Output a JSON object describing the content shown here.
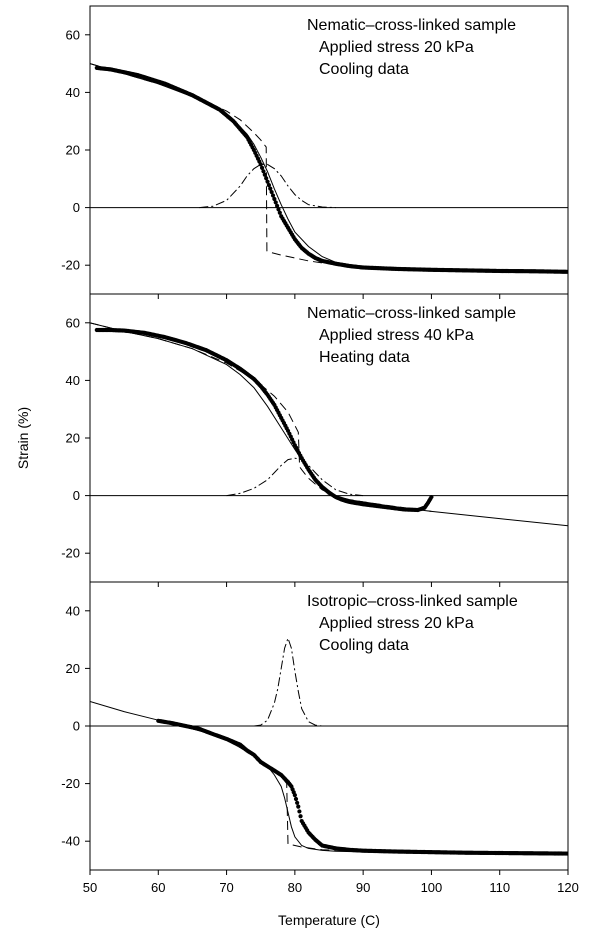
{
  "figure": {
    "xlabel": "Temperature (C)",
    "ylabel": "Strain (%)"
  },
  "chart_data": [
    {
      "type": "scatter",
      "panel": "top",
      "annotation": [
        "Nematic–cross-linked sample",
        "Applied stress 20 kPa",
        "Cooling data"
      ],
      "xlim": [
        50,
        120
      ],
      "ylim": [
        -30,
        70
      ],
      "x_ticks": [
        50,
        60,
        70,
        80,
        90,
        100,
        110,
        120
      ],
      "y_ticks": [
        -20,
        0,
        20,
        40,
        60
      ],
      "zero_line": true,
      "series": [
        {
          "style": "points",
          "x": [
            51,
            53,
            55,
            57,
            59,
            61,
            63,
            65,
            67,
            69,
            71,
            73,
            74,
            75,
            76,
            77,
            78,
            79,
            80,
            81,
            82,
            83,
            84,
            86,
            88,
            90,
            95,
            100,
            105,
            110,
            115,
            120
          ],
          "y": [
            48.5,
            48,
            47,
            46,
            44.5,
            43,
            41,
            39,
            36.5,
            34,
            30,
            24.5,
            20,
            15,
            9,
            3,
            -3,
            -7,
            -11,
            -14,
            -16,
            -17.5,
            -18.5,
            -19.5,
            -20.3,
            -20.8,
            -21.3,
            -21.6,
            -21.8,
            -22,
            -22.1,
            -22.3
          ]
        },
        {
          "style": "solid",
          "x": [
            50,
            55,
            60,
            65,
            68,
            70,
            72,
            73,
            74,
            75,
            76,
            77,
            78,
            79,
            80,
            82,
            84,
            86,
            90,
            100,
            110,
            120
          ],
          "y": [
            50,
            46.5,
            43,
            38.5,
            35,
            32,
            28,
            25.5,
            22,
            17.5,
            12.5,
            6.5,
            1,
            -4,
            -8.5,
            -13.5,
            -17,
            -19,
            -20.5,
            -21.5,
            -22,
            -22.3
          ]
        },
        {
          "style": "dashed",
          "x": [
            50,
            55,
            60,
            65,
            70,
            72,
            74,
            75,
            75.8,
            75.9,
            76.2,
            78,
            80,
            82,
            84,
            86,
            90,
            100,
            110,
            120
          ],
          "y": [
            50,
            46.5,
            43,
            39,
            33.5,
            30.5,
            26,
            23.5,
            21,
            -15,
            -15.4,
            -16.5,
            -17.5,
            -18.5,
            -19.2,
            -19.8,
            -20.6,
            -21.5,
            -22,
            -22.3
          ]
        },
        {
          "style": "dashdot",
          "x": [
            66,
            68,
            70,
            72,
            73,
            74,
            75,
            76,
            77,
            78,
            79,
            80,
            81,
            82,
            84,
            86
          ],
          "y": [
            0,
            0.5,
            2.5,
            7.5,
            11,
            13.5,
            15,
            15,
            13.5,
            11,
            7.5,
            4.5,
            2.5,
            1,
            0.2,
            0
          ]
        }
      ]
    },
    {
      "type": "scatter",
      "panel": "middle",
      "annotation": [
        "Nematic–cross-linked sample",
        "Applied stress 40 kPa",
        "Heating data"
      ],
      "xlim": [
        50,
        120
      ],
      "ylim": [
        -30,
        70
      ],
      "x_ticks": [
        50,
        60,
        70,
        80,
        90,
        100,
        110,
        120
      ],
      "y_ticks": [
        -20,
        0,
        20,
        40,
        60
      ],
      "zero_line": true,
      "series": [
        {
          "style": "points",
          "x": [
            51,
            53,
            55,
            58,
            61,
            64,
            67,
            70,
            72,
            74,
            75,
            76,
            77,
            78,
            79,
            80,
            81,
            82,
            83,
            84,
            85,
            86,
            87,
            88,
            90,
            92,
            94,
            96,
            98,
            99,
            99.5,
            100
          ],
          "y": [
            57.5,
            57.5,
            57.3,
            56.5,
            55,
            53,
            50.5,
            47,
            44,
            40.5,
            38,
            35,
            31.5,
            27,
            22.5,
            17.5,
            13,
            9,
            5.5,
            3,
            1,
            -0.5,
            -1.5,
            -2.2,
            -3,
            -3.6,
            -4.2,
            -4.8,
            -5,
            -4.2,
            -2.5,
            -0.5
          ]
        },
        {
          "style": "solid",
          "x": [
            50,
            55,
            60,
            65,
            70,
            72,
            74,
            76,
            78,
            80,
            82,
            84,
            86,
            88,
            90,
            95,
            100,
            110,
            120
          ],
          "y": [
            60,
            57,
            54.5,
            51,
            45.5,
            42,
            37.5,
            31,
            23.5,
            16,
            9,
            3.5,
            0,
            -1.5,
            -2.2,
            -4,
            -5.5,
            -8,
            -10.5
          ]
        },
        {
          "style": "dashed",
          "x": [
            50,
            55,
            60,
            65,
            70,
            74,
            77,
            79,
            80.5,
            80.7,
            81,
            82,
            84,
            86,
            88,
            90,
            95,
            100
          ],
          "y": [
            60,
            57,
            54.5,
            51,
            46,
            40.5,
            34.5,
            29,
            22,
            10,
            9,
            6,
            2,
            -0.2,
            -1.4,
            -2.2,
            -3.9,
            -5.5
          ]
        },
        {
          "style": "dashdot",
          "x": [
            70,
            72,
            74,
            76,
            77,
            78,
            79,
            80,
            81,
            82,
            83,
            84,
            86,
            88,
            90
          ],
          "y": [
            0,
            0.8,
            2.5,
            5.5,
            8,
            10.5,
            12.5,
            13,
            12.5,
            10.5,
            8,
            5.5,
            2,
            0.5,
            0
          ]
        }
      ]
    },
    {
      "type": "scatter",
      "panel": "bottom",
      "annotation": [
        "Isotropic–cross-linked sample",
        "Applied stress 20 kPa",
        "Cooling data"
      ],
      "xlim": [
        50,
        120
      ],
      "ylim": [
        -50,
        50
      ],
      "x_ticks": [
        50,
        60,
        70,
        80,
        90,
        100,
        110,
        120
      ],
      "y_ticks": [
        -40,
        -20,
        0,
        20,
        40
      ],
      "zero_line": true,
      "series": [
        {
          "style": "points",
          "x": [
            60,
            62,
            64,
            66,
            68,
            70,
            72,
            73,
            74,
            75,
            76,
            77,
            78,
            79,
            79.5,
            80,
            80.5,
            81,
            82,
            83,
            84,
            86,
            88,
            90,
            95,
            100,
            105,
            110,
            115,
            120
          ],
          "y": [
            1.8,
            1,
            0,
            -1,
            -2.8,
            -4.5,
            -6.5,
            -8.5,
            -10,
            -12.5,
            -14,
            -15.5,
            -17,
            -19.5,
            -21,
            -24,
            -28,
            -33,
            -37,
            -39.5,
            -41.5,
            -42.5,
            -43,
            -43.3,
            -43.6,
            -43.8,
            -44,
            -44.1,
            -44.2,
            -44.3
          ]
        },
        {
          "style": "solid",
          "x": [
            50,
            55,
            60,
            65,
            68,
            70,
            72,
            74,
            76,
            77,
            78,
            78.5,
            79,
            79.5,
            80,
            81,
            82,
            84,
            86,
            90,
            100,
            110,
            120
          ],
          "y": [
            8.5,
            5,
            2,
            -1,
            -3,
            -5,
            -7.5,
            -10.5,
            -14,
            -17,
            -21,
            -25,
            -30,
            -35,
            -38.5,
            -41.5,
            -42.5,
            -43.2,
            -43.5,
            -43.7,
            -43.9,
            -44.1,
            -44.3
          ]
        },
        {
          "style": "dashed",
          "x": [
            70,
            72,
            74,
            76,
            77,
            78,
            78.8,
            79,
            79.5,
            81,
            84,
            90,
            100,
            110,
            120
          ],
          "y": [
            -5,
            -7.5,
            -10.5,
            -13.5,
            -15.5,
            -17.5,
            -20,
            -41,
            -41.2,
            -42,
            -43,
            -43.5,
            -43.9,
            -44.1,
            -44.3
          ]
        },
        {
          "style": "dashdot",
          "x": [
            74,
            75,
            76,
            77,
            77.5,
            78,
            78.5,
            79,
            79.5,
            80,
            80.5,
            81,
            82,
            83,
            84
          ],
          "y": [
            0,
            0.3,
            2,
            8,
            13,
            20,
            27,
            30.5,
            27,
            19,
            12,
            6,
            1.5,
            0.3,
            0
          ]
        }
      ]
    }
  ]
}
